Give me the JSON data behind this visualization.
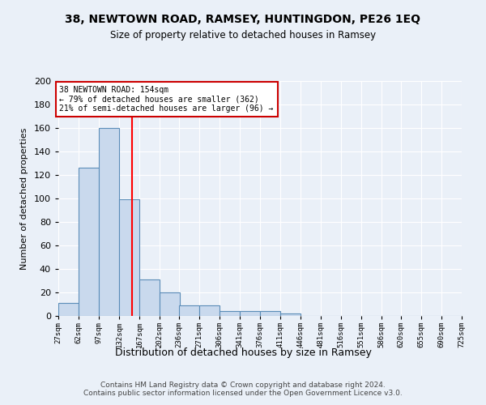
{
  "title1": "38, NEWTOWN ROAD, RAMSEY, HUNTINGDON, PE26 1EQ",
  "title2": "Size of property relative to detached houses in Ramsey",
  "xlabel": "Distribution of detached houses by size in Ramsey",
  "ylabel": "Number of detached properties",
  "bins": [
    27,
    62,
    97,
    132,
    167,
    202,
    236,
    271,
    306,
    341,
    376,
    411,
    446,
    481,
    516,
    551,
    586,
    620,
    655,
    690,
    725
  ],
  "counts": [
    11,
    126,
    160,
    99,
    31,
    20,
    9,
    9,
    4,
    4,
    4,
    2,
    0,
    0,
    0,
    0,
    0,
    0,
    0,
    0
  ],
  "bar_color": "#c9d9ed",
  "bar_edge_color": "#5b8db8",
  "bg_color": "#eaf0f8",
  "grid_color": "#ffffff",
  "red_line_x": 154,
  "annotation_text": "38 NEWTOWN ROAD: 154sqm\n← 79% of detached houses are smaller (362)\n21% of semi-detached houses are larger (96) →",
  "annotation_box_color": "#ffffff",
  "annotation_box_edge": "#cc0000",
  "ylim": [
    0,
    200
  ],
  "yticks": [
    0,
    20,
    40,
    60,
    80,
    100,
    120,
    140,
    160,
    180,
    200
  ],
  "tick_labels": [
    "27sqm",
    "62sqm",
    "97sqm",
    "132sqm",
    "167sqm",
    "202sqm",
    "236sqm",
    "271sqm",
    "306sqm",
    "341sqm",
    "376sqm",
    "411sqm",
    "446sqm",
    "481sqm",
    "516sqm",
    "551sqm",
    "586sqm",
    "620sqm",
    "655sqm",
    "690sqm",
    "725sqm"
  ],
  "footer": "Contains HM Land Registry data © Crown copyright and database right 2024.\nContains public sector information licensed under the Open Government Licence v3.0."
}
